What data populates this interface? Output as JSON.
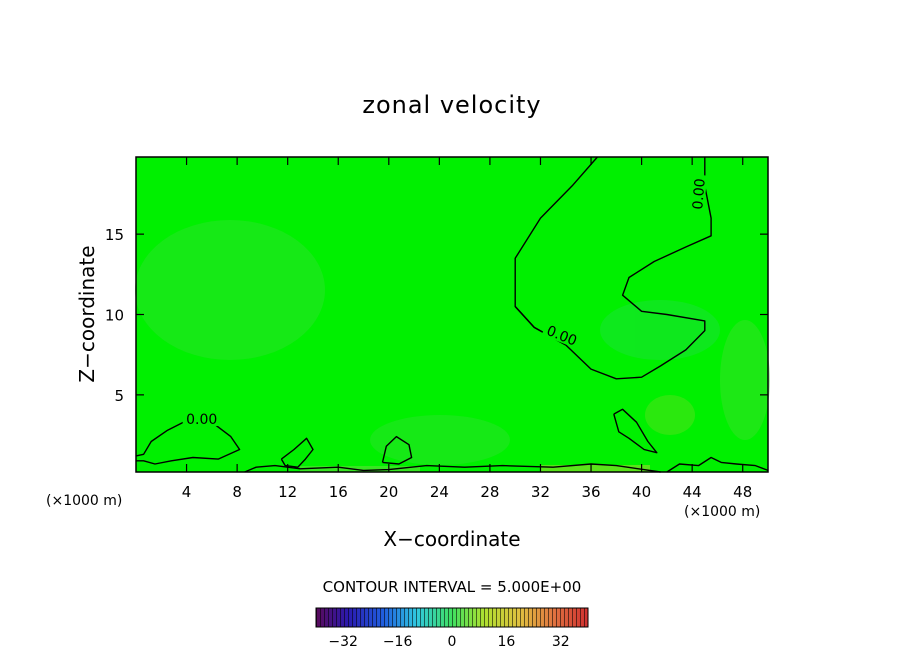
{
  "chart_data": {
    "type": "heatmap",
    "title": "zonal velocity",
    "xlabel": "X−coordinate",
    "ylabel": "Z−coordinate",
    "x_unit_left": "(×1000 m)",
    "x_unit_right": "(×1000 m)",
    "xlim": [
      0,
      50
    ],
    "ylim": [
      0.2,
      19.8
    ],
    "xticks": [
      4,
      8,
      12,
      16,
      20,
      24,
      28,
      32,
      36,
      40,
      44,
      48
    ],
    "xtick_labels": [
      "4",
      "8",
      "12",
      "16",
      "20",
      "24",
      "28",
      "32",
      "36",
      "40",
      "44",
      "48"
    ],
    "yticks": [
      5,
      10,
      15
    ],
    "ytick_labels": [
      "5",
      "10",
      "15"
    ],
    "contour_label": "0.00",
    "contour_interval_text": "CONTOUR INTERVAL = 5.000E+00",
    "colorbar": {
      "range": [
        -40,
        40
      ],
      "ticks": [
        -32,
        -16,
        0,
        16,
        32
      ],
      "tick_labels": [
        "−32",
        "−16",
        "0",
        "16",
        "32"
      ]
    },
    "zero_contours": [
      {
        "name": "upper-zero-contour",
        "points": [
          [
            36.5,
            19.8
          ],
          [
            34.5,
            18.0
          ],
          [
            32,
            16.0
          ],
          [
            30,
            13.5
          ],
          [
            30,
            10.5
          ],
          [
            31.5,
            9.2
          ],
          [
            34,
            8.1
          ],
          [
            36,
            6.6
          ],
          [
            38,
            6.0
          ],
          [
            40,
            6.1
          ],
          [
            41.5,
            6.8
          ],
          [
            43.5,
            7.8
          ],
          [
            45,
            9.0
          ],
          [
            45,
            9.6
          ],
          [
            42,
            10.0
          ],
          [
            40,
            10.2
          ],
          [
            38.5,
            11.2
          ],
          [
            39,
            12.3
          ],
          [
            41,
            13.3
          ],
          [
            43.5,
            14.2
          ],
          [
            45.5,
            14.9
          ],
          [
            45.5,
            16.0
          ],
          [
            45,
            18.0
          ],
          [
            45,
            19.8
          ]
        ],
        "label_at": [
          44.5,
          17.5
        ],
        "label_angle": -85
      },
      {
        "name": "mid-zero-contour",
        "points": [
          [
            30,
            10.5
          ],
          [
            31.5,
            9.2
          ],
          [
            34,
            8.1
          ]
        ],
        "label_at": [
          33.7,
          8.7
        ],
        "label_angle": 22
      },
      {
        "name": "left-zero-contour",
        "points": [
          [
            0,
            1.2
          ],
          [
            0.6,
            1.3
          ],
          [
            1.2,
            2.1
          ],
          [
            2.5,
            2.8
          ],
          [
            4,
            3.4
          ],
          [
            6,
            3.3
          ],
          [
            7.5,
            2.4
          ],
          [
            8.2,
            1.6
          ],
          [
            6.5,
            1.0
          ],
          [
            4.5,
            1.1
          ],
          [
            2.8,
            0.9
          ],
          [
            1.5,
            0.7
          ],
          [
            0.6,
            0.9
          ],
          [
            0,
            0.9
          ]
        ],
        "label_at": [
          5.2,
          3.5
        ],
        "label_angle": 0
      },
      {
        "name": "blob-contour-14",
        "points": [
          [
            11.5,
            1.0
          ],
          [
            12.5,
            1.6
          ],
          [
            13.5,
            2.3
          ],
          [
            14,
            1.6
          ],
          [
            13.4,
            1.0
          ],
          [
            12.8,
            0.5
          ],
          [
            11.8,
            0.6
          ],
          [
            11.5,
            1.0
          ]
        ]
      },
      {
        "name": "blob-contour-20",
        "points": [
          [
            19.5,
            0.8
          ],
          [
            19.8,
            1.8
          ],
          [
            20.6,
            2.4
          ],
          [
            21.6,
            1.9
          ],
          [
            21.8,
            1.1
          ],
          [
            20.8,
            0.7
          ],
          [
            19.5,
            0.8
          ]
        ]
      },
      {
        "name": "blob-contour-38",
        "points": [
          [
            37.8,
            3.8
          ],
          [
            38.5,
            4.1
          ],
          [
            39.6,
            3.3
          ],
          [
            40.5,
            2.1
          ],
          [
            41.2,
            1.4
          ],
          [
            40.2,
            1.6
          ],
          [
            39,
            2.3
          ],
          [
            38.2,
            2.7
          ],
          [
            37.8,
            3.8
          ]
        ]
      },
      {
        "name": "bottom-zero-contour",
        "points": [
          [
            8.6,
            0.2
          ],
          [
            9.5,
            0.5
          ],
          [
            11,
            0.6
          ],
          [
            13,
            0.4
          ],
          [
            16,
            0.5
          ],
          [
            18,
            0.3
          ],
          [
            20,
            0.35
          ],
          [
            23,
            0.6
          ],
          [
            26,
            0.5
          ],
          [
            29,
            0.6
          ],
          [
            33,
            0.5
          ],
          [
            36,
            0.7
          ],
          [
            38,
            0.6
          ],
          [
            41.5,
            0.2
          ]
        ]
      },
      {
        "name": "right-zero-contour",
        "points": [
          [
            42,
            0.2
          ],
          [
            43,
            0.7
          ],
          [
            44.5,
            0.6
          ],
          [
            45.5,
            1.1
          ],
          [
            46.3,
            0.8
          ],
          [
            47.5,
            0.7
          ],
          [
            49,
            0.6
          ],
          [
            50,
            0.3
          ]
        ]
      }
    ]
  }
}
